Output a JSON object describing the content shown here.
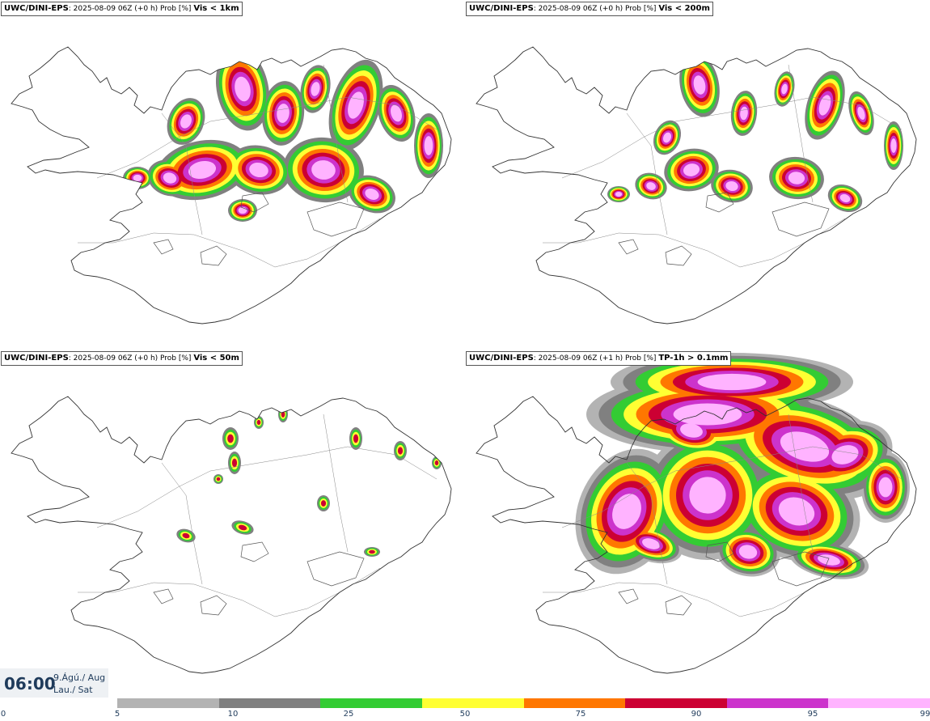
{
  "panels": [
    {
      "model": "UWC/DINI-EPS",
      "info": ": 2025-08-09 06Z (+0 h) Prob [%] ",
      "threshold": "Vis < 1km",
      "intensity": "high"
    },
    {
      "model": "UWC/DINI-EPS",
      "info": ": 2025-08-09 06Z (+0 h) Prob [%] ",
      "threshold": "Vis < 200m",
      "intensity": "medium"
    },
    {
      "model": "UWC/DINI-EPS",
      "info": ": 2025-08-09 06Z (+0 h) Prob [%] ",
      "threshold": "Vis < 50m",
      "intensity": "low"
    },
    {
      "model": "UWC/DINI-EPS",
      "info": ": 2025-08-09 06Z (+1 h) Prob [%] ",
      "threshold": "TP-1h > 0.1mm",
      "intensity": "precip"
    }
  ],
  "time": {
    "time": "06:00",
    "date_line1": "9.Ágú./ Aug",
    "date_line2": "Lau./ Sat"
  },
  "colorbar": {
    "ticks": [
      "0",
      "5",
      "10",
      "25",
      "50",
      "75",
      "90",
      "95",
      "99"
    ],
    "colors": [
      "#b3b3b3",
      "#808080",
      "#33cc33",
      "#ffff33",
      "#ff7700",
      "#cc0033",
      "#cc33cc",
      "#ffb3ff"
    ]
  }
}
